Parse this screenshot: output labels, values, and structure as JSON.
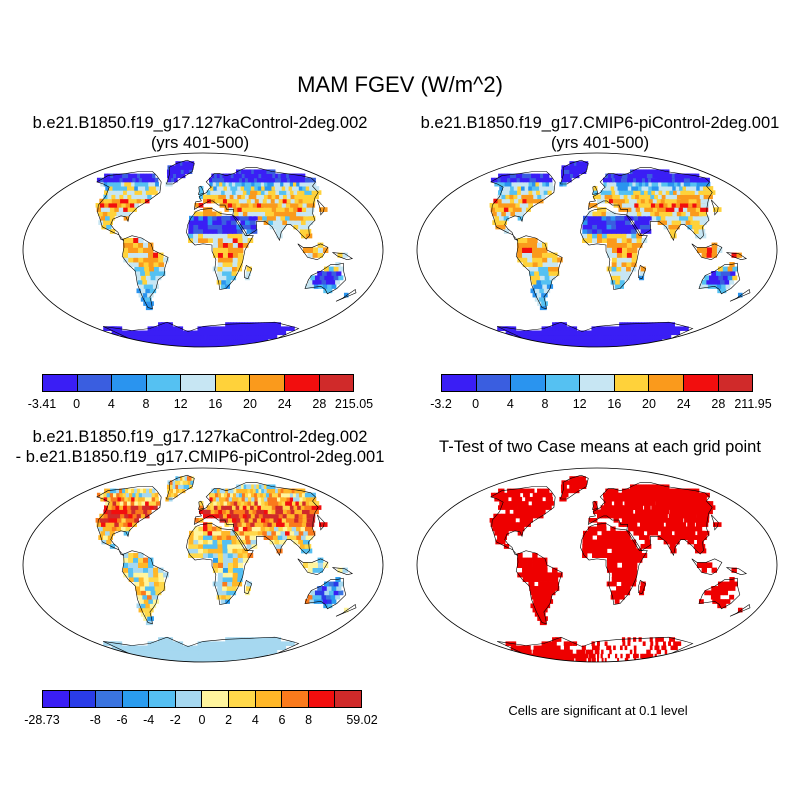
{
  "title": "MAM FGEV (W/m^2)",
  "panels": {
    "p1": {
      "line1": "b.e21.B1850.f19_g17.127kaControl-2deg.002",
      "line2": "(yrs 401-500)"
    },
    "p2": {
      "line1": "b.e21.B1850.f19_g17.CMIP6-piControl-2deg.001",
      "line2": "(yrs 401-500)"
    },
    "p3": {
      "line1": "b.e21.B1850.f19_g17.127kaControl-2deg.002",
      "line2": "- b.e21.B1850.f19_g17.CMIP6-piControl-2deg.001"
    },
    "p4": {
      "line1": "T-Test of two Case means at each grid point",
      "note": "Cells are significant at 0.1 level"
    }
  },
  "colorbars": {
    "cb1": {
      "labels": [
        "-3.41",
        "0",
        "4",
        "8",
        "12",
        "16",
        "20",
        "24",
        "28",
        "215.05"
      ],
      "colors": [
        "#3a1ef5",
        "#3a5ee0",
        "#2a94ef",
        "#55c1f2",
        "#c7e6f3",
        "#ffd23a",
        "#fa9a1c",
        "#f20e0e",
        "#d02a2a"
      ]
    },
    "cb2": {
      "labels": [
        "-3.2",
        "0",
        "4",
        "8",
        "12",
        "16",
        "20",
        "24",
        "28",
        "211.95"
      ],
      "colors": [
        "#3a1ef5",
        "#3a5ee0",
        "#2a94ef",
        "#55c1f2",
        "#c7e6f3",
        "#ffd23a",
        "#fa9a1c",
        "#f20e0e",
        "#d02a2a"
      ]
    },
    "cb3": {
      "labels": [
        "-28.73",
        "",
        "-8",
        "-6",
        "-4",
        "-2",
        "0",
        "2",
        "4",
        "6",
        "8",
        "",
        "59.02"
      ],
      "colors": [
        "#3a1ef5",
        "#2a3ce8",
        "#3a74e0",
        "#2a9cef",
        "#55bff2",
        "#a6d8f0",
        "#fff59e",
        "#ffd84a",
        "#ffb728",
        "#fa7a1c",
        "#f20e0e",
        "#d02a2a"
      ]
    }
  },
  "map_style": {
    "ocean": "#ffffff",
    "coastline": "#000000",
    "ttest_color": "#ee0000"
  }
}
